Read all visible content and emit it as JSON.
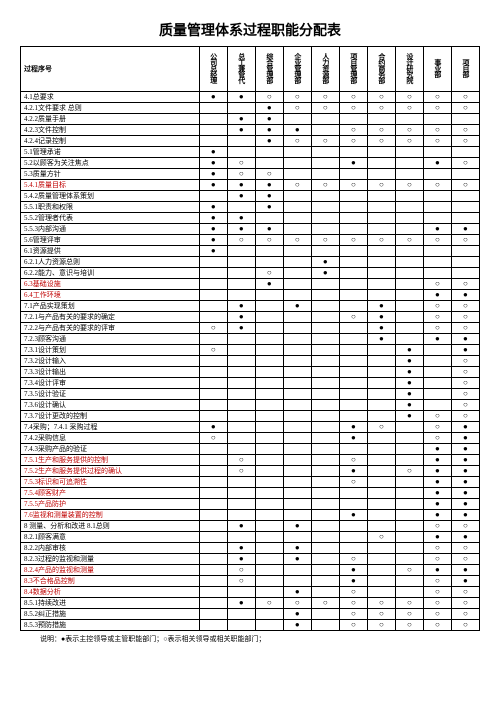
{
  "title": "质量管理体系过程职能分配表",
  "columns_label": "过程序号",
  "columns": [
    "公司总经理",
    "总工兼管代",
    "综合管理部",
    "企业管理部",
    "人力资源部",
    "项目管理部",
    "合约商务部",
    "设计研究院",
    "事业部",
    "项目部"
  ],
  "footnote": "说明：●表示主控领导或主管职能部门；○表示相关领导或相关职能部门；",
  "marks": {
    "f": "●",
    "o": "○",
    "": ""
  },
  "rows": [
    {
      "label": "4.1总要求",
      "red": false,
      "cells": [
        "f",
        "f",
        "o",
        "o",
        "o",
        "o",
        "o",
        "o",
        "o",
        "o"
      ]
    },
    {
      "label": "4.2.1文件要求 总则",
      "red": false,
      "cells": [
        "",
        "",
        "f",
        "o",
        "o",
        "o",
        "o",
        "o",
        "o",
        "o"
      ]
    },
    {
      "label": "4.2.2质量手册",
      "red": false,
      "cells": [
        "",
        "f",
        "f",
        "",
        "",
        "",
        "",
        "",
        "",
        ""
      ]
    },
    {
      "label": "4.2.3文件控制",
      "red": false,
      "cells": [
        "",
        "f",
        "f",
        "f",
        "",
        "o",
        "o",
        "o",
        "o",
        "o"
      ]
    },
    {
      "label": "4.2.4记录控制",
      "red": false,
      "cells": [
        "",
        "",
        "f",
        "o",
        "o",
        "o",
        "o",
        "o",
        "o",
        "o"
      ]
    },
    {
      "label": "5.1管理承诺",
      "red": false,
      "cells": [
        "f",
        "",
        "",
        "",
        "",
        "",
        "",
        "",
        "",
        ""
      ]
    },
    {
      "label": "5.2以顾客为关注焦点",
      "red": false,
      "cells": [
        "f",
        "o",
        "",
        "",
        "",
        "f",
        "",
        "",
        "f",
        "o"
      ]
    },
    {
      "label": "5.3质量方针",
      "red": false,
      "cells": [
        "f",
        "o",
        "o",
        "",
        "",
        "",
        "",
        "",
        "",
        ""
      ]
    },
    {
      "label": "5.4.1质量目标",
      "red": true,
      "cells": [
        "f",
        "f",
        "f",
        "o",
        "o",
        "o",
        "o",
        "o",
        "o",
        "o"
      ]
    },
    {
      "label": "5.4.2质量管理体系策划",
      "red": false,
      "cells": [
        "",
        "f",
        "f",
        "",
        "",
        "",
        "",
        "",
        "",
        ""
      ]
    },
    {
      "label": "5.5.1职责和权限",
      "red": false,
      "cells": [
        "f",
        "",
        "f",
        "",
        "",
        "",
        "",
        "",
        "",
        ""
      ]
    },
    {
      "label": "5.5.2管理者代表",
      "red": false,
      "cells": [
        "f",
        "f",
        "",
        "",
        "",
        "",
        "",
        "",
        "",
        ""
      ]
    },
    {
      "label": "5.5.3内部沟通",
      "red": false,
      "cells": [
        "f",
        "f",
        "f",
        "",
        "",
        "",
        "",
        "",
        "f",
        "f"
      ]
    },
    {
      "label": "5.6管理评审",
      "red": false,
      "cells": [
        "f",
        "o",
        "o",
        "o",
        "o",
        "o",
        "o",
        "o",
        "o",
        "o"
      ]
    },
    {
      "label": "6.1资源提供",
      "red": false,
      "cells": [
        "f",
        "",
        "",
        "",
        "",
        "",
        "",
        "",
        "",
        ""
      ]
    },
    {
      "label": "6.2.1人力资源总则",
      "red": false,
      "cells": [
        "",
        "",
        "",
        "",
        "f",
        "",
        "",
        "",
        "",
        ""
      ]
    },
    {
      "label": "6.2.2能力、意识与培训",
      "red": false,
      "cells": [
        "",
        "",
        "o",
        "",
        "f",
        "",
        "",
        "",
        "",
        ""
      ]
    },
    {
      "label": "6.3基础设施",
      "red": true,
      "cells": [
        "",
        "",
        "f",
        "",
        "",
        "",
        "",
        "",
        "o",
        "o"
      ]
    },
    {
      "label": "6.4工作环境",
      "red": true,
      "cells": [
        "",
        "",
        "",
        "",
        "",
        "",
        "",
        "",
        "f",
        "f"
      ]
    },
    {
      "label": "7.1产品实现策划",
      "red": false,
      "cells": [
        "",
        "f",
        "",
        "f",
        "",
        "",
        "f",
        "",
        "o",
        "o"
      ]
    },
    {
      "label": "7.2.1与产品有关的要求的确定",
      "red": false,
      "cells": [
        "",
        "f",
        "",
        "",
        "",
        "o",
        "f",
        "",
        "o",
        "o"
      ]
    },
    {
      "label": "7.2.2与产品有关的要求的评审",
      "red": false,
      "cells": [
        "o",
        "f",
        "",
        "",
        "",
        "",
        "f",
        "",
        "o",
        "o"
      ]
    },
    {
      "label": "7.2.3顾客沟通",
      "red": false,
      "cells": [
        "",
        "",
        "",
        "",
        "",
        "",
        "f",
        "",
        "f",
        "f"
      ]
    },
    {
      "label": "7.3.1设计策划",
      "red": false,
      "cells": [
        "o",
        "",
        "",
        "",
        "",
        "",
        "",
        "f",
        "",
        "f"
      ]
    },
    {
      "label": "7.3.2设计输入",
      "red": false,
      "cells": [
        "",
        "",
        "",
        "",
        "",
        "",
        "",
        "f",
        "",
        "o"
      ]
    },
    {
      "label": "7.3.3设计输出",
      "red": false,
      "cells": [
        "",
        "",
        "",
        "",
        "",
        "",
        "",
        "f",
        "",
        "o"
      ]
    },
    {
      "label": "7.3.4设计评审",
      "red": false,
      "cells": [
        "",
        "",
        "",
        "",
        "",
        "",
        "",
        "f",
        "",
        "o"
      ]
    },
    {
      "label": "7.3.5设计验证",
      "red": false,
      "cells": [
        "",
        "",
        "",
        "",
        "",
        "",
        "",
        "f",
        "",
        "o"
      ]
    },
    {
      "label": "7.3.6设计确认",
      "red": false,
      "cells": [
        "",
        "",
        "",
        "",
        "",
        "",
        "",
        "f",
        "",
        "o"
      ]
    },
    {
      "label": "7.3.7设计更改的控制",
      "red": false,
      "cells": [
        "",
        "",
        "",
        "",
        "",
        "",
        "",
        "f",
        "o",
        "o"
      ]
    },
    {
      "label": "7.4采购；7.4.1 采购过程",
      "red": false,
      "cells": [
        "f",
        "",
        "",
        "",
        "",
        "f",
        "o",
        "",
        "o",
        "f"
      ]
    },
    {
      "label": "7.4.2采购信息",
      "red": false,
      "cells": [
        "o",
        "",
        "",
        "",
        "",
        "f",
        "",
        "",
        "o",
        "f"
      ]
    },
    {
      "label": "7.4.3采购产品的验证",
      "red": false,
      "cells": [
        "",
        "",
        "",
        "",
        "",
        "",
        "",
        "",
        "f",
        "f"
      ]
    },
    {
      "label": "7.5.1生产和服务提供的控制",
      "red": true,
      "cells": [
        "",
        "o",
        "",
        "",
        "",
        "o",
        "",
        "",
        "f",
        "f"
      ]
    },
    {
      "label": "7.5.2生产和服务提供过程的确认",
      "red": true,
      "cells": [
        "",
        "o",
        "",
        "",
        "",
        "f",
        "",
        "o",
        "f",
        "f"
      ]
    },
    {
      "label": "7.5.3标识和可追溯性",
      "red": true,
      "cells": [
        "",
        "",
        "",
        "",
        "",
        "o",
        "",
        "",
        "f",
        "f"
      ]
    },
    {
      "label": "7.5.4顾客财产",
      "red": true,
      "cells": [
        "",
        "",
        "",
        "",
        "",
        "",
        "",
        "",
        "f",
        "f"
      ]
    },
    {
      "label": "7.5.5产品防护",
      "red": true,
      "cells": [
        "",
        "",
        "",
        "",
        "",
        "",
        "",
        "",
        "f",
        "f"
      ]
    },
    {
      "label": "7.6监视和测量装置的控制",
      "red": true,
      "cells": [
        "",
        "",
        "",
        "",
        "",
        "f",
        "",
        "",
        "f",
        "f"
      ]
    },
    {
      "label": "8 测量、分析和改进 8.1总则",
      "red": false,
      "cells": [
        "",
        "f",
        "",
        "f",
        "",
        "",
        "",
        "",
        "o",
        "o"
      ]
    },
    {
      "label": "8.2.1顾客满意",
      "red": false,
      "cells": [
        "",
        "",
        "",
        "",
        "",
        "",
        "o",
        "",
        "f",
        "f"
      ]
    },
    {
      "label": "8.2.2内部审核",
      "red": false,
      "cells": [
        "",
        "f",
        "",
        "f",
        "",
        "",
        "",
        "",
        "o",
        "o"
      ]
    },
    {
      "label": "8.2.3过程的监视和测量",
      "red": false,
      "cells": [
        "",
        "f",
        "",
        "f",
        "",
        "o",
        "",
        "",
        "o",
        "o"
      ]
    },
    {
      "label": "8.2.4产品的监视和测量",
      "red": true,
      "cells": [
        "",
        "o",
        "",
        "",
        "",
        "f",
        "",
        "o",
        "f",
        "f"
      ]
    },
    {
      "label": "8.3不合格品控制",
      "red": true,
      "cells": [
        "",
        "o",
        "",
        "",
        "",
        "f",
        "",
        "",
        "o",
        "f"
      ]
    },
    {
      "label": "8.4数据分析",
      "red": true,
      "cells": [
        "",
        "",
        "",
        "f",
        "",
        "o",
        "",
        "",
        "o",
        "o"
      ]
    },
    {
      "label": "8.5.1持续改进",
      "red": false,
      "cells": [
        "",
        "f",
        "o",
        "o",
        "o",
        "o",
        "o",
        "o",
        "o",
        "o"
      ]
    },
    {
      "label": "8.5.2纠正措施",
      "red": false,
      "cells": [
        "",
        "",
        "",
        "f",
        "",
        "o",
        "o",
        "o",
        "o",
        "o"
      ]
    },
    {
      "label": "8.5.3预防措施",
      "red": false,
      "cells": [
        "",
        "",
        "",
        "f",
        "",
        "o",
        "o",
        "o",
        "o",
        "o"
      ]
    }
  ]
}
